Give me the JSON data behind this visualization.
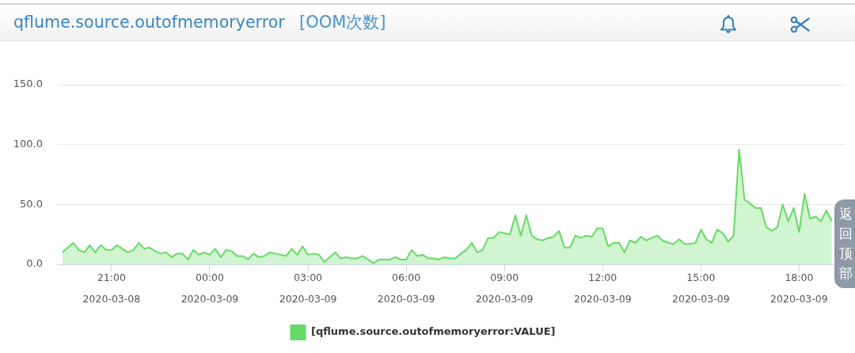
{
  "chart_data": {
    "type": "area",
    "title": "qflume.source.outofmemoryerror",
    "subtitle": "[OOM次数]",
    "x": [
      "2020-03-08T19:30",
      "2020-03-08T19:40",
      "2020-03-08T19:50",
      "2020-03-08T20:00",
      "2020-03-08T20:10",
      "2020-03-08T20:20",
      "2020-03-08T20:30",
      "2020-03-08T20:40",
      "2020-03-08T20:50",
      "2020-03-08T21:00",
      "2020-03-08T21:10",
      "2020-03-08T21:20",
      "2020-03-08T21:30",
      "2020-03-08T21:40",
      "2020-03-08T21:50",
      "2020-03-08T22:00",
      "2020-03-08T22:10",
      "2020-03-08T22:20",
      "2020-03-08T22:30",
      "2020-03-08T22:40",
      "2020-03-08T22:50",
      "2020-03-08T23:00",
      "2020-03-08T23:10",
      "2020-03-08T23:20",
      "2020-03-08T23:30",
      "2020-03-08T23:40",
      "2020-03-08T23:50",
      "2020-03-09T00:00",
      "2020-03-09T00:10",
      "2020-03-09T00:20",
      "2020-03-09T00:30",
      "2020-03-09T00:40",
      "2020-03-09T00:50",
      "2020-03-09T01:00",
      "2020-03-09T01:10",
      "2020-03-09T01:20",
      "2020-03-09T01:30",
      "2020-03-09T01:40",
      "2020-03-09T01:50",
      "2020-03-09T02:00",
      "2020-03-09T02:10",
      "2020-03-09T02:20",
      "2020-03-09T02:30",
      "2020-03-09T02:40",
      "2020-03-09T02:50",
      "2020-03-09T03:00",
      "2020-03-09T03:10",
      "2020-03-09T03:20",
      "2020-03-09T03:30",
      "2020-03-09T03:40",
      "2020-03-09T03:50",
      "2020-03-09T04:00",
      "2020-03-09T04:10",
      "2020-03-09T04:20",
      "2020-03-09T04:30",
      "2020-03-09T04:40",
      "2020-03-09T04:50",
      "2020-03-09T05:00",
      "2020-03-09T05:10",
      "2020-03-09T05:20",
      "2020-03-09T05:30",
      "2020-03-09T05:40",
      "2020-03-09T05:50",
      "2020-03-09T06:00",
      "2020-03-09T06:10",
      "2020-03-09T06:20",
      "2020-03-09T06:30",
      "2020-03-09T06:40",
      "2020-03-09T06:50",
      "2020-03-09T07:00",
      "2020-03-09T07:10",
      "2020-03-09T07:20",
      "2020-03-09T07:30",
      "2020-03-09T07:40",
      "2020-03-09T07:50",
      "2020-03-09T08:00",
      "2020-03-09T08:10",
      "2020-03-09T08:20",
      "2020-03-09T08:30",
      "2020-03-09T08:40",
      "2020-03-09T08:50",
      "2020-03-09T09:00",
      "2020-03-09T09:10",
      "2020-03-09T09:20",
      "2020-03-09T09:30",
      "2020-03-09T09:40",
      "2020-03-09T09:50",
      "2020-03-09T10:00",
      "2020-03-09T10:10",
      "2020-03-09T10:20",
      "2020-03-09T10:30",
      "2020-03-09T10:40",
      "2020-03-09T10:50",
      "2020-03-09T11:00",
      "2020-03-09T11:10",
      "2020-03-09T11:20",
      "2020-03-09T11:30",
      "2020-03-09T11:40",
      "2020-03-09T11:50",
      "2020-03-09T12:00",
      "2020-03-09T12:10",
      "2020-03-09T12:20",
      "2020-03-09T12:30",
      "2020-03-09T12:40",
      "2020-03-09T12:50",
      "2020-03-09T13:00",
      "2020-03-09T13:10",
      "2020-03-09T13:20",
      "2020-03-09T13:30",
      "2020-03-09T13:40",
      "2020-03-09T13:50",
      "2020-03-09T14:00",
      "2020-03-09T14:10",
      "2020-03-09T14:20",
      "2020-03-09T14:30",
      "2020-03-09T14:40",
      "2020-03-09T14:50",
      "2020-03-09T15:00",
      "2020-03-09T15:10",
      "2020-03-09T15:20",
      "2020-03-09T15:30",
      "2020-03-09T15:40",
      "2020-03-09T15:50",
      "2020-03-09T16:00",
      "2020-03-09T16:10",
      "2020-03-09T16:20",
      "2020-03-09T16:30",
      "2020-03-09T16:40",
      "2020-03-09T16:50",
      "2020-03-09T17:00",
      "2020-03-09T17:10",
      "2020-03-09T17:20",
      "2020-03-09T17:30",
      "2020-03-09T17:40",
      "2020-03-09T17:50",
      "2020-03-09T18:00",
      "2020-03-09T18:10",
      "2020-03-09T18:20",
      "2020-03-09T18:30",
      "2020-03-09T18:40",
      "2020-03-09T18:50",
      "2020-03-09T19:00"
    ],
    "series": [
      {
        "name": "[qflume.source.outofmemoryerror:VALUE]",
        "color": "#66da66",
        "values": [
          10,
          14,
          18,
          12,
          10,
          16,
          10,
          16,
          12,
          12,
          16,
          13,
          10,
          12,
          18,
          13,
          14,
          11,
          9,
          10,
          6,
          9,
          9,
          4,
          12,
          8,
          10,
          8,
          13,
          6,
          12,
          11,
          7,
          7,
          4,
          9,
          6,
          7,
          10,
          9,
          8,
          7,
          13,
          8,
          15,
          8,
          9,
          8,
          2,
          6,
          10,
          5,
          6,
          5,
          5,
          7,
          4,
          1,
          4,
          4,
          4,
          6,
          4,
          4,
          12,
          7,
          8,
          5,
          5,
          4,
          6,
          5,
          5,
          9,
          12,
          18,
          10,
          12,
          22,
          22,
          27,
          26,
          25,
          41,
          24,
          41,
          24,
          21,
          20,
          22,
          23,
          28,
          14,
          14,
          24,
          22,
          24,
          23,
          30,
          30,
          15,
          18,
          18,
          10,
          20,
          18,
          23,
          20,
          22,
          24,
          20,
          18,
          17,
          21,
          17,
          17,
          18,
          29,
          21,
          18,
          29,
          26,
          19,
          24,
          96,
          54,
          51,
          47,
          47,
          31,
          28,
          31,
          50,
          36,
          47,
          27,
          59,
          38,
          40,
          36,
          45,
          36
        ]
      }
    ],
    "xlim": [
      "2020-03-08T19:20",
      "2020-03-09T19:25"
    ],
    "xticks": [
      {
        "value": "2020-03-08T21:00",
        "label": "21:00\n2020-03-08"
      },
      {
        "value": "2020-03-09T00:00",
        "label": "00:00\n2020-03-09"
      },
      {
        "value": "2020-03-09T03:00",
        "label": "03:00\n2020-03-09"
      },
      {
        "value": "2020-03-09T06:00",
        "label": "06:00\n2020-03-09"
      },
      {
        "value": "2020-03-09T09:00",
        "label": "09:00\n2020-03-09"
      },
      {
        "value": "2020-03-09T12:00",
        "label": "12:00\n2020-03-09"
      },
      {
        "value": "2020-03-09T15:00",
        "label": "15:00\n2020-03-09"
      },
      {
        "value": "2020-03-09T18:00",
        "label": "18:00\n2020-03-09"
      }
    ],
    "ylim": [
      0,
      150
    ],
    "yticks": [
      {
        "value": 0,
        "label": "0.0"
      },
      {
        "value": 50,
        "label": "50.0"
      },
      {
        "value": 100,
        "label": "100.0"
      },
      {
        "value": 150,
        "label": "150.0"
      }
    ],
    "grid": "y",
    "legend": "bottom",
    "marker": "none",
    "annotations": [
      "返回顶部"
    ]
  }
}
